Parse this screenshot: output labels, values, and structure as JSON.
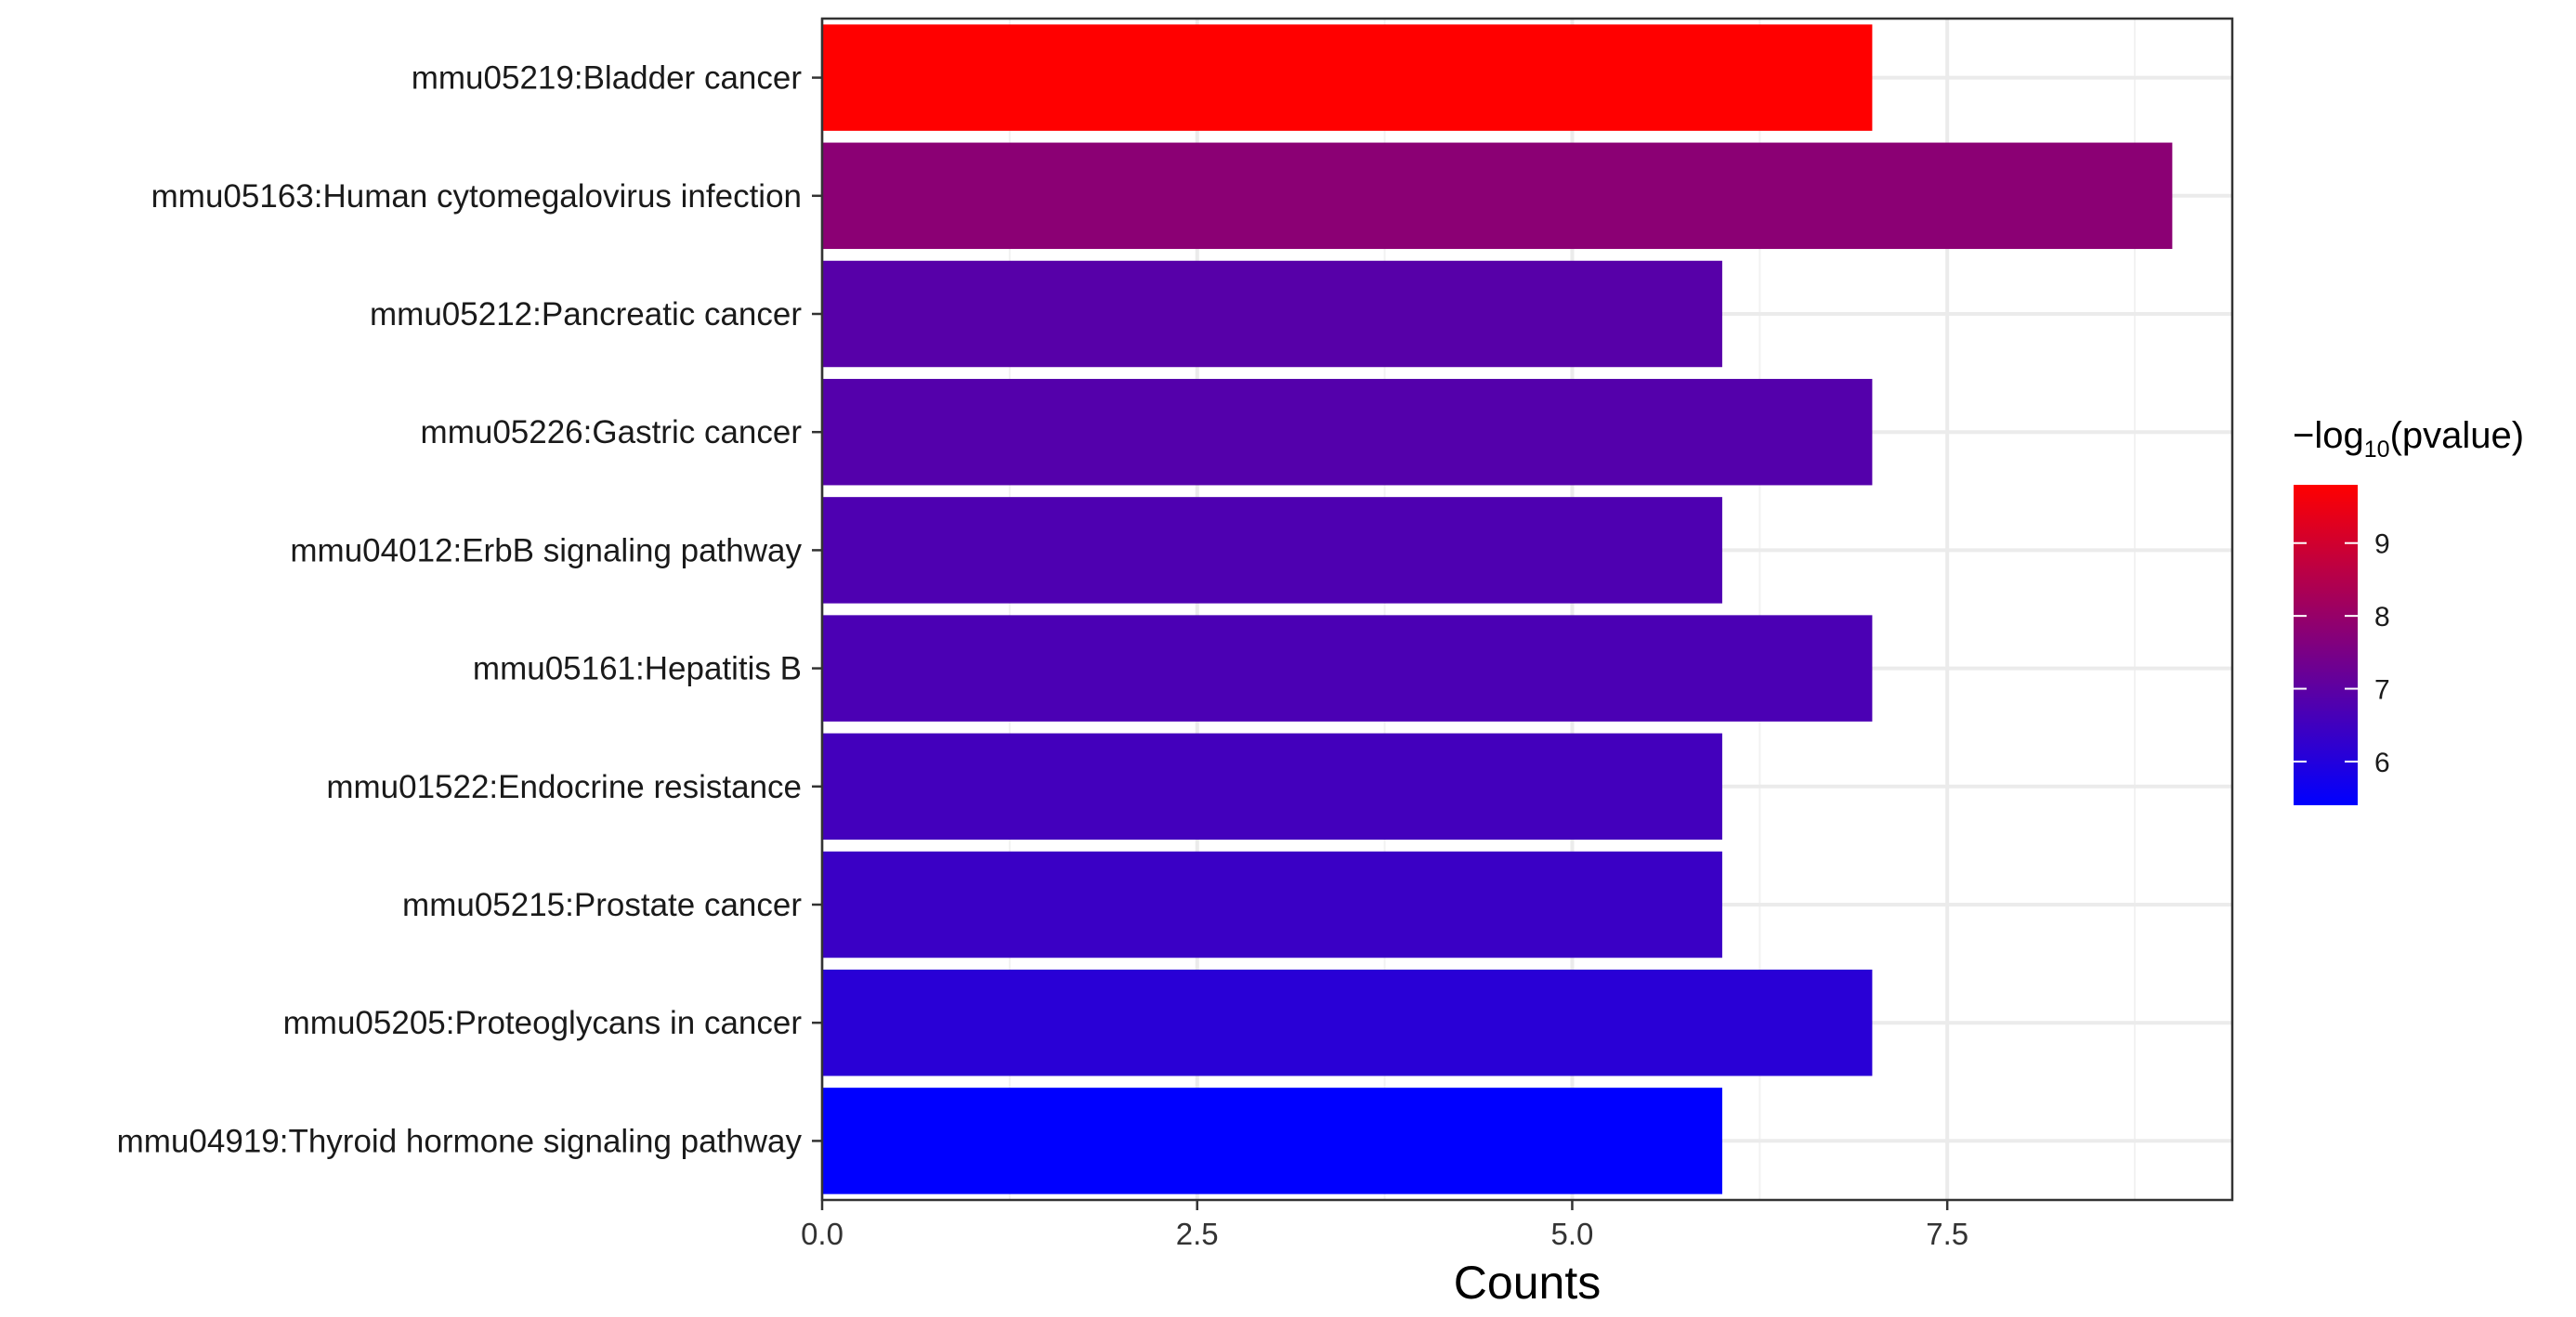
{
  "chart_data": {
    "type": "bar",
    "orientation": "horizontal",
    "title": "",
    "xlabel": "Counts",
    "ylabel": "",
    "xlim": [
      0,
      9.4
    ],
    "x_ticks": [
      0,
      2.5,
      5,
      7.5
    ],
    "x_tick_labels": [
      "0.0",
      "2.5",
      "5.0",
      "7.5"
    ],
    "grid": true,
    "categories": [
      "mmu05219:Bladder cancer",
      "mmu05163:Human cytomegalovirus infection",
      "mmu05212:Pancreatic cancer",
      "mmu05226:Gastric cancer",
      "mmu04012:ErbB signaling pathway",
      "mmu05161:Hepatitis B",
      "mmu01522:Endocrine resistance",
      "mmu05215:Prostate cancer",
      "mmu05205:Proteoglycans in cancer",
      "mmu04919:Thyroid hormone signaling pathway"
    ],
    "values": [
      7,
      9,
      6,
      7,
      6,
      7,
      6,
      6,
      7,
      6
    ],
    "neg_log10_pvalue": [
      9.8,
      7.8,
      6.9,
      6.85,
      6.75,
      6.7,
      6.55,
      6.4,
      6.1,
      5.4
    ],
    "color_scale": {
      "title_prefix": "−log",
      "title_subscript": "10",
      "title_suffix": "(pvalue)",
      "low_color": "#0000ff",
      "high_color": "#ff0000",
      "min": 5.4,
      "max": 9.8,
      "ticks": [
        6,
        7,
        8,
        9
      ],
      "tick_labels": [
        "6",
        "7",
        "8",
        "9"
      ],
      "legend_position": "right"
    }
  }
}
